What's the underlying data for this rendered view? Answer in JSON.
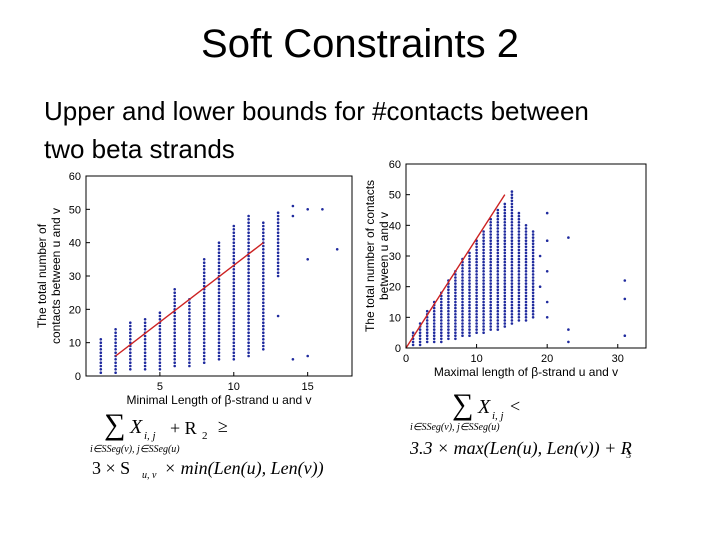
{
  "slide": {
    "title": "Soft Constraints 2",
    "subtitle_line1": "Upper and lower bounds for #contacts between",
    "subtitle_line2": "two beta strands"
  },
  "formulas": {
    "left": {
      "term": "X",
      "term_sub": "i, j",
      "plus": "+ R",
      "plus_sub": "2",
      "relation": "≥",
      "index": "i∈SSeg(v), j∈SSeg(u)",
      "rhs_a": "3 × S",
      "rhs_a_sub": "u, v",
      "rhs_b": "× min(Len(u), Len(v))"
    },
    "right": {
      "term": "X",
      "term_sub": "i, j",
      "relation": "<",
      "index": "i∈SSeg(v), j∈SSeg(u)",
      "rhs": "3.3 × max(Len(u), Len(v)) + R",
      "rhs_sub": "3"
    }
  },
  "chart_data": [
    {
      "type": "scatter",
      "xlabel": "Minimal Length of β-strand u and v",
      "ylabel_line1": "The total number of",
      "ylabel_line2": "contacts between u and v",
      "xlim": [
        0,
        18
      ],
      "ylim": [
        0,
        60
      ],
      "xticks": [
        5,
        10,
        15
      ],
      "yticks": [
        0,
        10,
        20,
        30,
        40,
        50,
        60
      ],
      "point_color": "#1f2a9e",
      "line_color": "#cc2222",
      "line": {
        "x": [
          2,
          12
        ],
        "y": [
          6,
          40
        ]
      },
      "columns": [
        {
          "x": 1,
          "ymin": 1,
          "ymax": 11
        },
        {
          "x": 2,
          "ymin": 1,
          "ymax": 14
        },
        {
          "x": 3,
          "ymin": 2,
          "ymax": 16
        },
        {
          "x": 4,
          "ymin": 2,
          "ymax": 17
        },
        {
          "x": 5,
          "ymin": 2,
          "ymax": 19
        },
        {
          "x": 6,
          "ymin": 3,
          "ymax": 26
        },
        {
          "x": 7,
          "ymin": 3,
          "ymax": 23
        },
        {
          "x": 8,
          "ymin": 4,
          "ymax": 35
        },
        {
          "x": 9,
          "ymin": 5,
          "ymax": 40
        },
        {
          "x": 10,
          "ymin": 5,
          "ymax": 45
        },
        {
          "x": 11,
          "ymin": 6,
          "ymax": 48
        },
        {
          "x": 12,
          "ymin": 8,
          "ymax": 46
        },
        {
          "x": 13,
          "ymin": 30,
          "ymax": 49
        }
      ],
      "extra_points": [
        {
          "x": 14,
          "y": 51
        },
        {
          "x": 14,
          "y": 48
        },
        {
          "x": 14,
          "y": 5
        },
        {
          "x": 15,
          "y": 50
        },
        {
          "x": 15,
          "y": 35
        },
        {
          "x": 15,
          "y": 6
        },
        {
          "x": 16,
          "y": 50
        },
        {
          "x": 17,
          "y": 38
        },
        {
          "x": 13,
          "y": 18
        },
        {
          "x": 11,
          "y": 18
        },
        {
          "x": 12,
          "y": 15
        }
      ]
    },
    {
      "type": "scatter",
      "xlabel": "Maximal length of β-strand u and v",
      "ylabel_line1": "The total number of contacts",
      "ylabel_line2": "between u and v",
      "xlim": [
        0,
        34
      ],
      "ylim": [
        0,
        60
      ],
      "xticks": [
        0,
        10,
        20,
        30
      ],
      "yticks": [
        0,
        10,
        20,
        30,
        40,
        50,
        60
      ],
      "point_color": "#1f2a9e",
      "line_color": "#cc2222",
      "line": {
        "x": [
          0,
          14
        ],
        "y": [
          0,
          50
        ]
      },
      "columns": [
        {
          "x": 1,
          "ymin": 1,
          "ymax": 5
        },
        {
          "x": 2,
          "ymin": 1,
          "ymax": 8
        },
        {
          "x": 3,
          "ymin": 2,
          "ymax": 12
        },
        {
          "x": 4,
          "ymin": 2,
          "ymax": 15
        },
        {
          "x": 5,
          "ymin": 2,
          "ymax": 18
        },
        {
          "x": 6,
          "ymin": 3,
          "ymax": 22
        },
        {
          "x": 7,
          "ymin": 3,
          "ymax": 25
        },
        {
          "x": 8,
          "ymin": 4,
          "ymax": 29
        },
        {
          "x": 9,
          "ymin": 4,
          "ymax": 31
        },
        {
          "x": 10,
          "ymin": 5,
          "ymax": 35
        },
        {
          "x": 11,
          "ymin": 5,
          "ymax": 38
        },
        {
          "x": 12,
          "ymin": 6,
          "ymax": 42
        },
        {
          "x": 13,
          "ymin": 6,
          "ymax": 45
        },
        {
          "x": 14,
          "ymin": 7,
          "ymax": 47
        },
        {
          "x": 15,
          "ymin": 8,
          "ymax": 51
        },
        {
          "x": 16,
          "ymin": 9,
          "ymax": 44
        },
        {
          "x": 17,
          "ymin": 9,
          "ymax": 40
        },
        {
          "x": 18,
          "ymin": 10,
          "ymax": 38
        }
      ],
      "extra_points": [
        {
          "x": 20,
          "y": 44
        },
        {
          "x": 20,
          "y": 35
        },
        {
          "x": 20,
          "y": 25
        },
        {
          "x": 20,
          "y": 15
        },
        {
          "x": 20,
          "y": 10
        },
        {
          "x": 23,
          "y": 36
        },
        {
          "x": 23,
          "y": 6
        },
        {
          "x": 23,
          "y": 2
        },
        {
          "x": 31,
          "y": 22
        },
        {
          "x": 31,
          "y": 16
        },
        {
          "x": 31,
          "y": 4
        },
        {
          "x": 19,
          "y": 30
        },
        {
          "x": 19,
          "y": 20
        }
      ]
    }
  ]
}
